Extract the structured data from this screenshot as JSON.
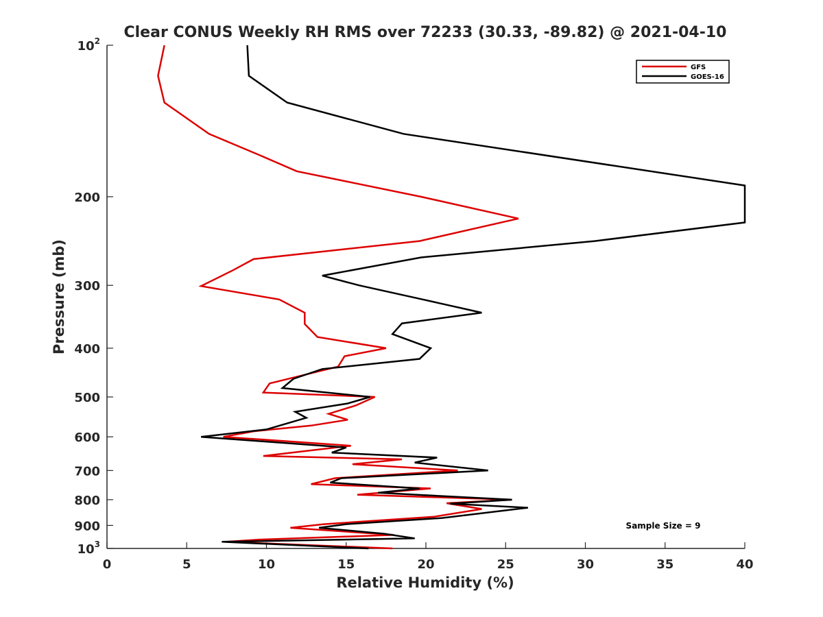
{
  "chart_data": {
    "type": "line",
    "title": "Clear CONUS Weekly RH RMS over 72233 (30.33, -89.82) @ 2021-04-10",
    "xlabel": "Relative Humidity (%)",
    "ylabel": "Pressure (mb)",
    "xlim": [
      0,
      40
    ],
    "ylim": [
      100,
      1000
    ],
    "yscale": "log",
    "y_reversed": true,
    "x_ticks": [
      0,
      5,
      10,
      15,
      20,
      25,
      30,
      35,
      40
    ],
    "y_ticks": [
      {
        "value": 100,
        "label": "10",
        "exponent": "2"
      },
      {
        "value": 200,
        "label": "200"
      },
      {
        "value": 300,
        "label": "300"
      },
      {
        "value": 400,
        "label": "400"
      },
      {
        "value": 500,
        "label": "500"
      },
      {
        "value": 600,
        "label": "600"
      },
      {
        "value": 700,
        "label": "700"
      },
      {
        "value": 800,
        "label": "800"
      },
      {
        "value": 900,
        "label": "900"
      },
      {
        "value": 1000,
        "label": "10",
        "exponent": "3"
      }
    ],
    "legend_position": "top-right",
    "annotation": "Sample Size = 9",
    "series": [
      {
        "name": "GFS",
        "color": "#dd0000",
        "points": [
          [
            3.6,
            100
          ],
          [
            3.2,
            115
          ],
          [
            3.6,
            130
          ],
          [
            6.4,
            150
          ],
          [
            9.5,
            165
          ],
          [
            11.9,
            178
          ],
          [
            19.7,
            200
          ],
          [
            25.8,
            221
          ],
          [
            19.6,
            245
          ],
          [
            9.2,
            266
          ],
          [
            7.9,
            280
          ],
          [
            5.9,
            301
          ],
          [
            10.8,
            320
          ],
          [
            12.4,
            340
          ],
          [
            12.4,
            358
          ],
          [
            13.2,
            380
          ],
          [
            17.5,
            400
          ],
          [
            14.9,
            415
          ],
          [
            14.5,
            435
          ],
          [
            10.2,
            470
          ],
          [
            9.8,
            490
          ],
          [
            16.8,
            500
          ],
          [
            15.6,
            520
          ],
          [
            13.9,
            540
          ],
          [
            15.1,
            555
          ],
          [
            12.8,
            570
          ],
          [
            9.2,
            585
          ],
          [
            7.3,
            600
          ],
          [
            15.3,
            625
          ],
          [
            9.8,
            655
          ],
          [
            18.5,
            665
          ],
          [
            15.4,
            680
          ],
          [
            22.0,
            700
          ],
          [
            14.3,
            725
          ],
          [
            12.8,
            745
          ],
          [
            20.3,
            760
          ],
          [
            15.7,
            782
          ],
          [
            25.4,
            800
          ],
          [
            21.3,
            813
          ],
          [
            23.5,
            835
          ],
          [
            20.5,
            865
          ],
          [
            13.6,
            895
          ],
          [
            11.5,
            910
          ],
          [
            18.0,
            940
          ],
          [
            9.6,
            960
          ],
          [
            7.5,
            970
          ],
          [
            17.9,
            1000
          ]
        ]
      },
      {
        "name": "GOES-16",
        "color": "#000000",
        "points": [
          [
            8.8,
            100
          ],
          [
            8.9,
            115
          ],
          [
            11.3,
            130
          ],
          [
            18.6,
            150
          ],
          [
            40.0,
            190
          ],
          [
            40.0,
            225
          ],
          [
            30.6,
            245
          ],
          [
            19.7,
            264
          ],
          [
            13.5,
            287
          ],
          [
            15.8,
            300
          ],
          [
            19.8,
            320
          ],
          [
            23.5,
            340
          ],
          [
            18.5,
            357
          ],
          [
            17.9,
            375
          ],
          [
            20.3,
            400
          ],
          [
            19.6,
            420
          ],
          [
            13.5,
            440
          ],
          [
            11.7,
            460
          ],
          [
            11.0,
            480
          ],
          [
            16.5,
            500
          ],
          [
            15.1,
            515
          ],
          [
            11.8,
            535
          ],
          [
            12.5,
            550
          ],
          [
            10.0,
            580
          ],
          [
            5.9,
            600
          ],
          [
            15.0,
            630
          ],
          [
            14.1,
            645
          ],
          [
            20.7,
            660
          ],
          [
            19.3,
            675
          ],
          [
            23.9,
            700
          ],
          [
            14.7,
            725
          ],
          [
            14.0,
            740
          ],
          [
            19.6,
            760
          ],
          [
            17.0,
            775
          ],
          [
            25.4,
            800
          ],
          [
            21.5,
            815
          ],
          [
            26.4,
            830
          ],
          [
            21.0,
            870
          ],
          [
            15.0,
            895
          ],
          [
            13.3,
            910
          ],
          [
            17.4,
            935
          ],
          [
            19.3,
            955
          ],
          [
            7.2,
            970
          ],
          [
            16.4,
            1000
          ]
        ]
      }
    ]
  }
}
